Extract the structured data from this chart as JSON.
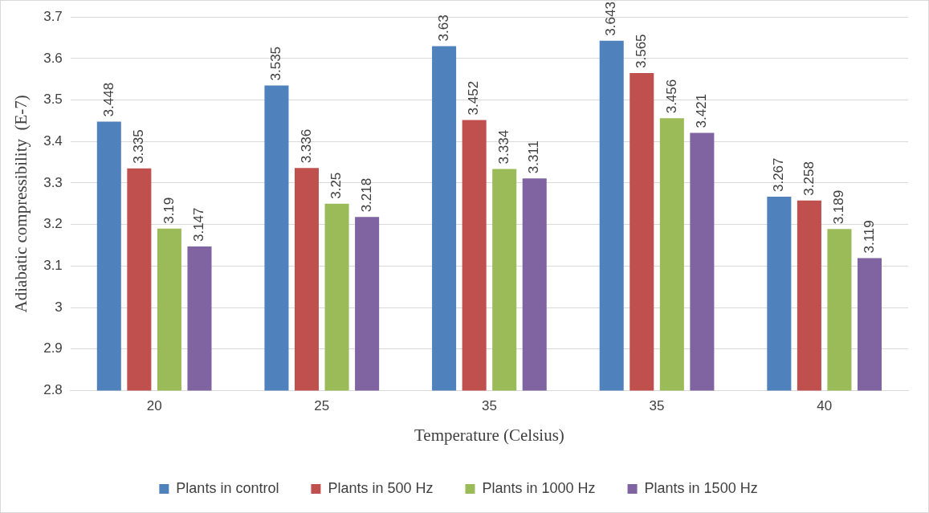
{
  "chart_data": {
    "type": "bar",
    "xlabel": "Temperature (Celsius)",
    "ylabel": "Adiabatic compressibility  (E-7)",
    "categories": [
      "20",
      "25",
      "35",
      "35",
      "40"
    ],
    "series": [
      {
        "name": "Plants in control",
        "color": "#4f81bd",
        "values": [
          3.448,
          3.535,
          3.63,
          3.643,
          3.267
        ]
      },
      {
        "name": "Plants in 500 Hz",
        "color": "#c0504d",
        "values": [
          3.335,
          3.336,
          3.452,
          3.565,
          3.258
        ]
      },
      {
        "name": "Plants in 1000 Hz",
        "color": "#9bbb59",
        "values": [
          3.19,
          3.25,
          3.334,
          3.456,
          3.189
        ]
      },
      {
        "name": "Plants in 1500 Hz",
        "color": "#8064a2",
        "values": [
          3.147,
          3.218,
          3.311,
          3.421,
          3.119
        ]
      }
    ],
    "ylim": [
      2.8,
      3.7
    ],
    "yticks": [
      2.8,
      2.9,
      3,
      3.1,
      3.2,
      3.3,
      3.4,
      3.5,
      3.6,
      3.7
    ],
    "grid": "y",
    "legend": "bottom",
    "data_labels": true
  }
}
